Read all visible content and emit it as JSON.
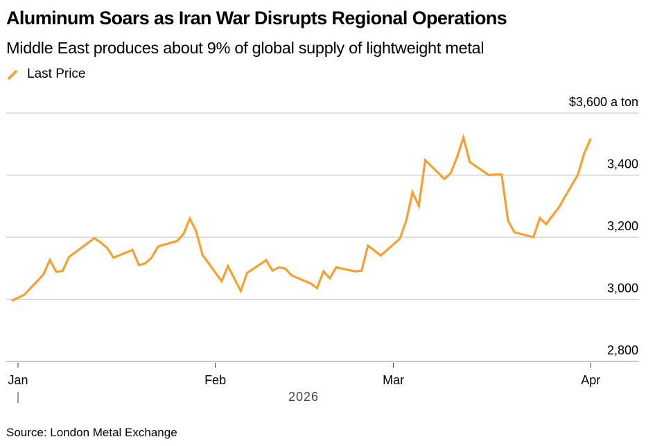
{
  "header": {
    "title": "Aluminum Soars as Iran War Disrupts Regional Operations",
    "subtitle": "Middle East produces about 9% of global supply of lightweight metal"
  },
  "legend": {
    "items": [
      {
        "label": "Last Price",
        "icon": "diagonal-line-icon",
        "color": "#f7a030"
      }
    ]
  },
  "footer": {
    "source": "Source: London Metal Exchange"
  },
  "colors": {
    "series": "#f7a030",
    "grid": "#cccccc",
    "axis": "#cccccc",
    "tick": "#333333",
    "year_label": "#444444"
  },
  "chart_data": {
    "type": "line",
    "title": "Aluminum Soars as Iran War Disrupts Regional Operations",
    "subtitle": "Middle East produces about 9% of global supply of lightweight metal",
    "xlabel": "2026",
    "ylabel": "$ a ton",
    "y_unit_label": "$3,600 a ton",
    "ylim": [
      2800,
      3600
    ],
    "yticks": [
      2800,
      3000,
      3200,
      3400,
      3600
    ],
    "ytick_labels": [
      "2,800",
      "3,000",
      "3,200",
      "3,400",
      "$3,600 a ton"
    ],
    "xlim": [
      "2025-12-31",
      "2026-04-07"
    ],
    "xticks": [
      "2026-01-01",
      "2026-02-01",
      "2026-03-01",
      "2026-04-01"
    ],
    "xtick_labels": [
      "Jan",
      "Feb",
      "Mar",
      "Apr"
    ],
    "year_label": "2026",
    "grid": true,
    "y_axis_side": "right",
    "legend_position": "top-left",
    "series": [
      {
        "name": "Last Price",
        "color": "#f7a030",
        "points": [
          {
            "date": "2025-12-31",
            "value": 2995
          },
          {
            "date": "2026-01-02",
            "value": 3015
          },
          {
            "date": "2026-01-05",
            "value": 3080
          },
          {
            "date": "2026-01-06",
            "value": 3127
          },
          {
            "date": "2026-01-07",
            "value": 3089
          },
          {
            "date": "2026-01-08",
            "value": 3091
          },
          {
            "date": "2026-01-09",
            "value": 3136
          },
          {
            "date": "2026-01-13",
            "value": 3197
          },
          {
            "date": "2026-01-14",
            "value": 3183
          },
          {
            "date": "2026-01-15",
            "value": 3166
          },
          {
            "date": "2026-01-16",
            "value": 3134
          },
          {
            "date": "2026-01-19",
            "value": 3159
          },
          {
            "date": "2026-01-20",
            "value": 3110
          },
          {
            "date": "2026-01-21",
            "value": 3116
          },
          {
            "date": "2026-01-22",
            "value": 3134
          },
          {
            "date": "2026-01-23",
            "value": 3170
          },
          {
            "date": "2026-01-26",
            "value": 3188
          },
          {
            "date": "2026-01-27",
            "value": 3210
          },
          {
            "date": "2026-01-28",
            "value": 3260
          },
          {
            "date": "2026-01-29",
            "value": 3219
          },
          {
            "date": "2026-01-30",
            "value": 3143
          },
          {
            "date": "2026-02-02",
            "value": 3058
          },
          {
            "date": "2026-02-03",
            "value": 3107
          },
          {
            "date": "2026-02-05",
            "value": 3027
          },
          {
            "date": "2026-02-06",
            "value": 3085
          },
          {
            "date": "2026-02-09",
            "value": 3126
          },
          {
            "date": "2026-02-10",
            "value": 3092
          },
          {
            "date": "2026-02-11",
            "value": 3103
          },
          {
            "date": "2026-02-12",
            "value": 3099
          },
          {
            "date": "2026-02-13",
            "value": 3077
          },
          {
            "date": "2026-02-16",
            "value": 3051
          },
          {
            "date": "2026-02-17",
            "value": 3036
          },
          {
            "date": "2026-02-18",
            "value": 3090
          },
          {
            "date": "2026-02-19",
            "value": 3068
          },
          {
            "date": "2026-02-20",
            "value": 3103
          },
          {
            "date": "2026-02-23",
            "value": 3090
          },
          {
            "date": "2026-02-24",
            "value": 3092
          },
          {
            "date": "2026-02-25",
            "value": 3173
          },
          {
            "date": "2026-02-27",
            "value": 3141
          },
          {
            "date": "2026-03-02",
            "value": 3195
          },
          {
            "date": "2026-03-03",
            "value": 3253
          },
          {
            "date": "2026-03-04",
            "value": 3345
          },
          {
            "date": "2026-03-05",
            "value": 3301
          },
          {
            "date": "2026-03-06",
            "value": 3448
          },
          {
            "date": "2026-03-09",
            "value": 3388
          },
          {
            "date": "2026-03-10",
            "value": 3406
          },
          {
            "date": "2026-03-11",
            "value": 3458
          },
          {
            "date": "2026-03-12",
            "value": 3521
          },
          {
            "date": "2026-03-13",
            "value": 3442
          },
          {
            "date": "2026-03-16",
            "value": 3400
          },
          {
            "date": "2026-03-17",
            "value": 3402
          },
          {
            "date": "2026-03-18",
            "value": 3402
          },
          {
            "date": "2026-03-19",
            "value": 3254
          },
          {
            "date": "2026-03-20",
            "value": 3216
          },
          {
            "date": "2026-03-23",
            "value": 3200
          },
          {
            "date": "2026-03-24",
            "value": 3262
          },
          {
            "date": "2026-03-25",
            "value": 3242
          },
          {
            "date": "2026-03-27",
            "value": 3296
          },
          {
            "date": "2026-03-30",
            "value": 3402
          },
          {
            "date": "2026-03-31",
            "value": 3471
          },
          {
            "date": "2026-04-01",
            "value": 3518
          }
        ]
      }
    ],
    "source": "Source: London Metal Exchange"
  }
}
